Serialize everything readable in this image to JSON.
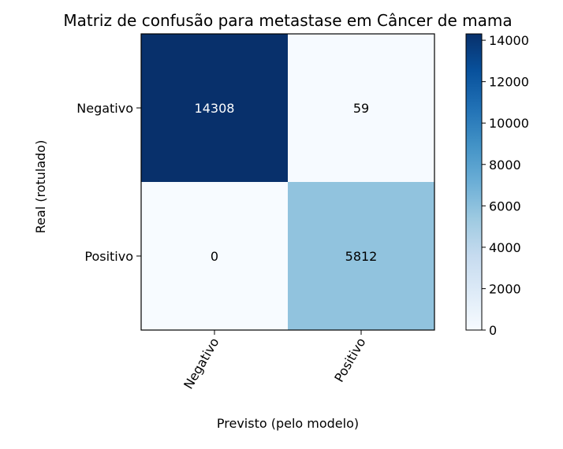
{
  "chart_data": {
    "type": "heatmap",
    "title": "Matriz de confusão para metastase em Câncer de mama",
    "xlabel": "Previsto (pelo modelo)",
    "ylabel": "Real (rotulado)",
    "x_categories": [
      "Negativo",
      "Positivo"
    ],
    "y_categories": [
      "Negativo",
      "Positivo"
    ],
    "values": [
      [
        14308,
        59
      ],
      [
        0,
        5812
      ]
    ],
    "colormap": "Blues",
    "colorbar": {
      "ticks": [
        0,
        2000,
        4000,
        6000,
        8000,
        10000,
        12000,
        14000
      ],
      "range": [
        0,
        14308
      ]
    },
    "legend": "colorbar-right",
    "grid": false
  }
}
